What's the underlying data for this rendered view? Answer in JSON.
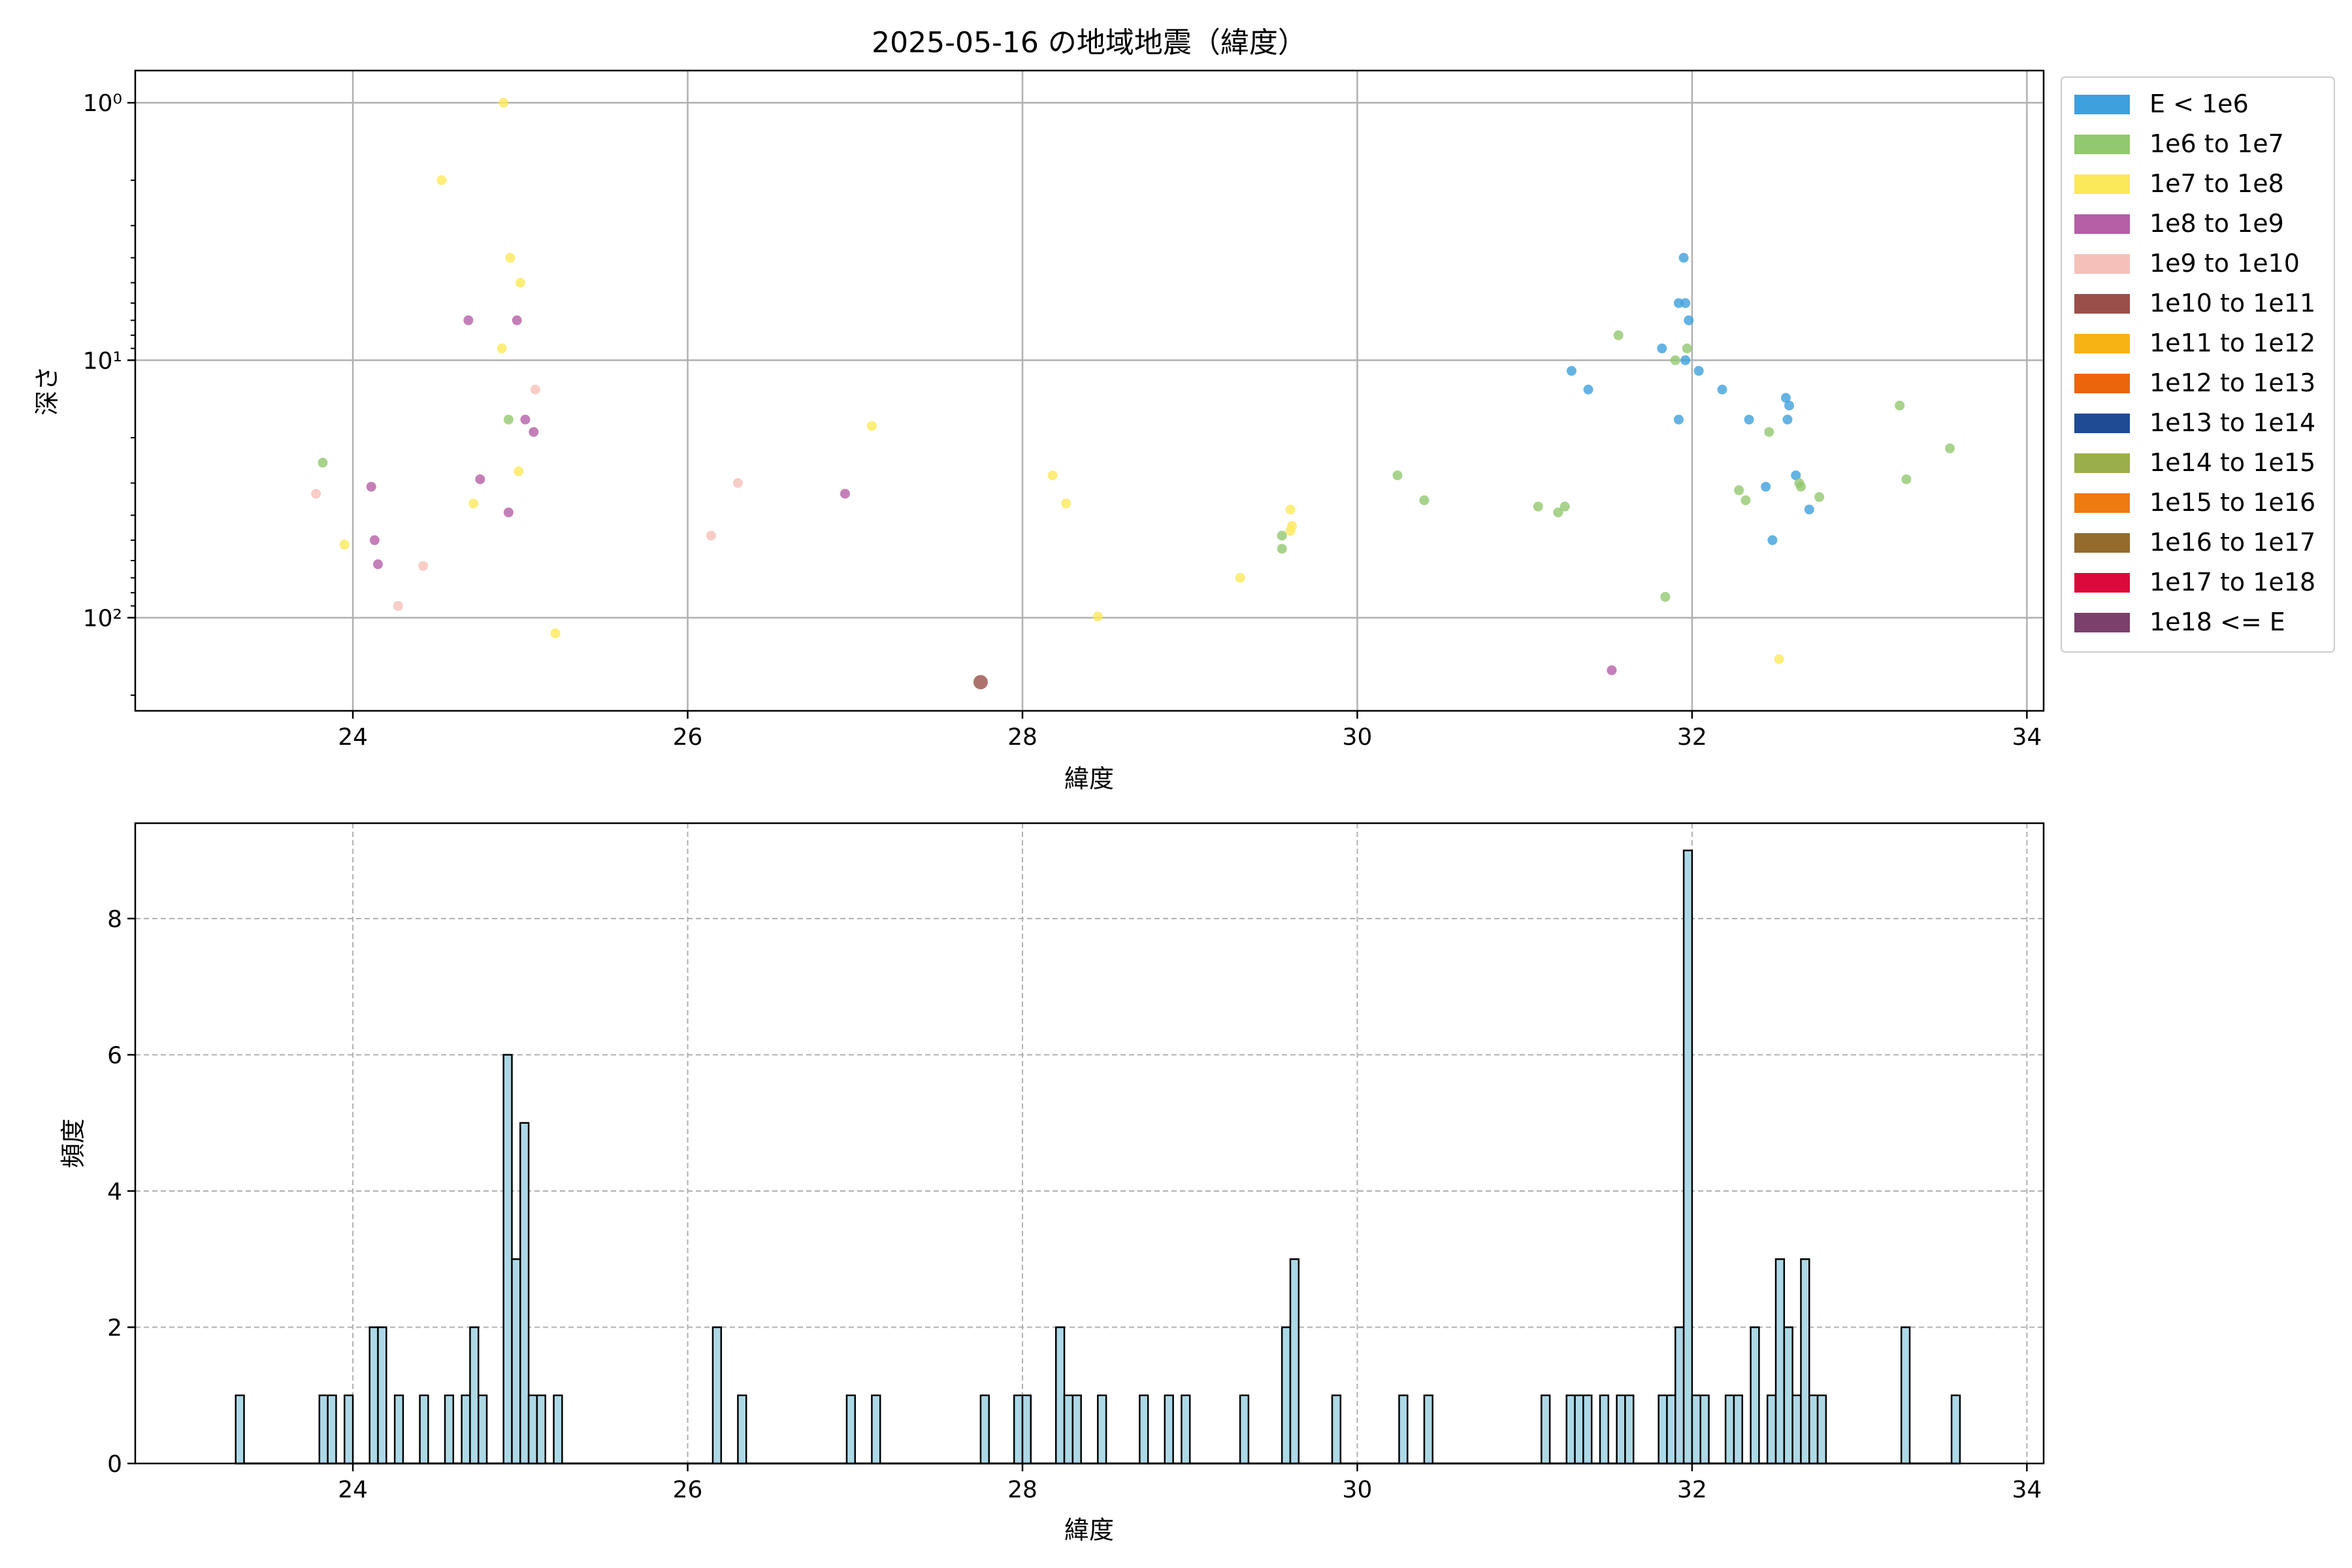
{
  "chart_data": [
    {
      "type": "scatter",
      "title": "2025-05-16 の地域地震（緯度）",
      "xlabel": "緯度",
      "ylabel": "深さ",
      "xlim": [
        22.7,
        34.1
      ],
      "ylim": [
        0.75,
        230
      ],
      "y_scale": "log",
      "y_inverted": true,
      "grid": true,
      "xticks": [
        24,
        26,
        28,
        30,
        32,
        34
      ],
      "yticks": [
        {
          "value": 1,
          "label": "10⁰"
        },
        {
          "value": 10,
          "label": "10¹"
        },
        {
          "value": 100,
          "label": "10²"
        }
      ],
      "legend_position": "outside-right",
      "legend": [
        {
          "label": "E < 1e6",
          "color": "#3ea0dc"
        },
        {
          "label": "1e6 to 1e7",
          "color": "#92c86f"
        },
        {
          "label": "1e7 to 1e8",
          "color": "#fce95a"
        },
        {
          "label": "1e8 to 1e9",
          "color": "#b55fa6"
        },
        {
          "label": "1e9 to 1e10",
          "color": "#f6c0ba"
        },
        {
          "label": "1e10 to 1e11",
          "color": "#9a4f4a"
        },
        {
          "label": "1e11 to 1e12",
          "color": "#f7b313"
        },
        {
          "label": "1e12 to 1e13",
          "color": "#ec650b"
        },
        {
          "label": "1e13 to 1e14",
          "color": "#1f4b93"
        },
        {
          "label": "1e14 to 1e15",
          "color": "#9bae4c"
        },
        {
          "label": "1e15 to 1e16",
          "color": "#ee7a12"
        },
        {
          "label": "1e16 to 1e17",
          "color": "#946a2d"
        },
        {
          "label": "1e17 to 1e18",
          "color": "#dc0a3c"
        },
        {
          "label": "1e18 <= E",
          "color": "#7b416c"
        }
      ],
      "series": [
        {
          "category": 0,
          "points": [
            [
              31.28,
              11.0
            ],
            [
              31.38,
              13.0
            ],
            [
              31.82,
              9.0
            ],
            [
              31.92,
              6.0
            ],
            [
              31.95,
              4.0
            ],
            [
              31.96,
              6.0
            ],
            [
              31.98,
              7.0
            ],
            [
              31.96,
              10.0
            ],
            [
              32.04,
              11.0
            ],
            [
              32.18,
              13.0
            ],
            [
              31.92,
              17.0
            ],
            [
              32.34,
              17.0
            ],
            [
              32.56,
              14.0
            ],
            [
              32.58,
              15.0
            ],
            [
              32.57,
              17.0
            ],
            [
              32.44,
              31.0
            ],
            [
              32.62,
              28.0
            ],
            [
              32.7,
              38.0
            ],
            [
              32.48,
              50.0
            ]
          ]
        },
        {
          "category": 1,
          "points": [
            [
              23.82,
              25.0
            ],
            [
              24.93,
              17.0
            ],
            [
              30.24,
              28.0
            ],
            [
              30.4,
              35.0
            ],
            [
              31.08,
              37.0
            ],
            [
              31.2,
              39.0
            ],
            [
              31.24,
              37.0
            ],
            [
              31.56,
              8.0
            ],
            [
              31.9,
              10.0
            ],
            [
              31.97,
              9.0
            ],
            [
              29.55,
              48.0
            ],
            [
              29.55,
              54.0
            ],
            [
              31.84,
              83.0
            ],
            [
              32.28,
              32.0
            ],
            [
              32.32,
              35.0
            ],
            [
              32.46,
              19.0
            ],
            [
              32.64,
              30.0
            ],
            [
              32.65,
              31.0
            ],
            [
              32.76,
              34.0
            ],
            [
              33.24,
              15.0
            ],
            [
              33.28,
              29.0
            ],
            [
              33.54,
              22.0
            ]
          ]
        },
        {
          "category": 2,
          "points": [
            [
              24.9,
              1.0
            ],
            [
              24.53,
              2.0
            ],
            [
              24.94,
              4.0
            ],
            [
              25.0,
              5.0
            ],
            [
              24.89,
              9.0
            ],
            [
              25.21,
              115.0
            ],
            [
              23.95,
              52.0
            ],
            [
              24.72,
              36.0
            ],
            [
              24.99,
              27.0
            ],
            [
              27.1,
              18.0
            ],
            [
              28.18,
              28.0
            ],
            [
              28.26,
              36.0
            ],
            [
              28.45,
              99.0
            ],
            [
              29.3,
              70.0
            ],
            [
              29.6,
              38.0
            ],
            [
              29.6,
              46.0
            ],
            [
              29.61,
              44.0
            ],
            [
              32.52,
              145.0
            ]
          ]
        },
        {
          "category": 3,
          "points": [
            [
              24.11,
              31.0
            ],
            [
              24.13,
              50.0
            ],
            [
              24.15,
              62.0
            ],
            [
              24.69,
              7.0
            ],
            [
              24.76,
              29.0
            ],
            [
              24.93,
              39.0
            ],
            [
              24.98,
              7.0
            ],
            [
              25.03,
              17.0
            ],
            [
              25.08,
              19.0
            ],
            [
              26.94,
              33.0
            ],
            [
              31.52,
              160.0
            ]
          ]
        },
        {
          "category": 4,
          "points": [
            [
              23.78,
              33.0
            ],
            [
              24.27,
              90.0
            ],
            [
              24.42,
              63.0
            ],
            [
              25.09,
              13.0
            ],
            [
              26.14,
              48.0
            ],
            [
              26.3,
              30.0
            ]
          ]
        },
        {
          "category": 5,
          "points": [
            [
              27.75,
              178.0
            ]
          ]
        }
      ]
    },
    {
      "type": "bar",
      "title": "",
      "xlabel": "緯度",
      "ylabel": "頻度",
      "xlim": [
        22.7,
        34.1
      ],
      "ylim": [
        0,
        9.4
      ],
      "grid": true,
      "grid_style": "dashed",
      "xticks": [
        24,
        26,
        28,
        30,
        32,
        34
      ],
      "yticks": [
        0,
        2,
        4,
        6,
        8
      ],
      "bin_width": 0.05,
      "bar_color": "#add8e6",
      "edge_color": "#000000",
      "bins": [
        [
          23.3,
          1
        ],
        [
          23.8,
          1
        ],
        [
          23.85,
          1
        ],
        [
          23.95,
          1
        ],
        [
          24.1,
          2
        ],
        [
          24.15,
          2
        ],
        [
          24.25,
          1
        ],
        [
          24.4,
          1
        ],
        [
          24.55,
          1
        ],
        [
          24.65,
          1
        ],
        [
          24.7,
          2
        ],
        [
          24.75,
          1
        ],
        [
          24.9,
          6
        ],
        [
          24.95,
          3
        ],
        [
          25.0,
          5
        ],
        [
          25.05,
          1
        ],
        [
          25.1,
          1
        ],
        [
          25.2,
          1
        ],
        [
          26.15,
          2
        ],
        [
          26.3,
          1
        ],
        [
          26.95,
          1
        ],
        [
          27.1,
          1
        ],
        [
          27.75,
          1
        ],
        [
          27.95,
          1
        ],
        [
          28.0,
          1
        ],
        [
          28.2,
          2
        ],
        [
          28.25,
          1
        ],
        [
          28.3,
          1
        ],
        [
          28.45,
          1
        ],
        [
          28.7,
          1
        ],
        [
          28.85,
          1
        ],
        [
          28.95,
          1
        ],
        [
          29.3,
          1
        ],
        [
          29.55,
          2
        ],
        [
          29.6,
          3
        ],
        [
          29.85,
          1
        ],
        [
          30.25,
          1
        ],
        [
          30.4,
          1
        ],
        [
          31.1,
          1
        ],
        [
          31.25,
          1
        ],
        [
          31.3,
          1
        ],
        [
          31.35,
          1
        ],
        [
          31.45,
          1
        ],
        [
          31.55,
          1
        ],
        [
          31.6,
          1
        ],
        [
          31.8,
          1
        ],
        [
          31.85,
          1
        ],
        [
          31.9,
          2
        ],
        [
          31.95,
          9
        ],
        [
          32.0,
          1
        ],
        [
          32.05,
          1
        ],
        [
          32.2,
          1
        ],
        [
          32.25,
          1
        ],
        [
          32.35,
          2
        ],
        [
          32.45,
          1
        ],
        [
          32.5,
          3
        ],
        [
          32.55,
          2
        ],
        [
          32.6,
          1
        ],
        [
          32.65,
          3
        ],
        [
          32.7,
          1
        ],
        [
          32.75,
          1
        ],
        [
          33.25,
          2
        ],
        [
          33.55,
          1
        ]
      ]
    }
  ]
}
